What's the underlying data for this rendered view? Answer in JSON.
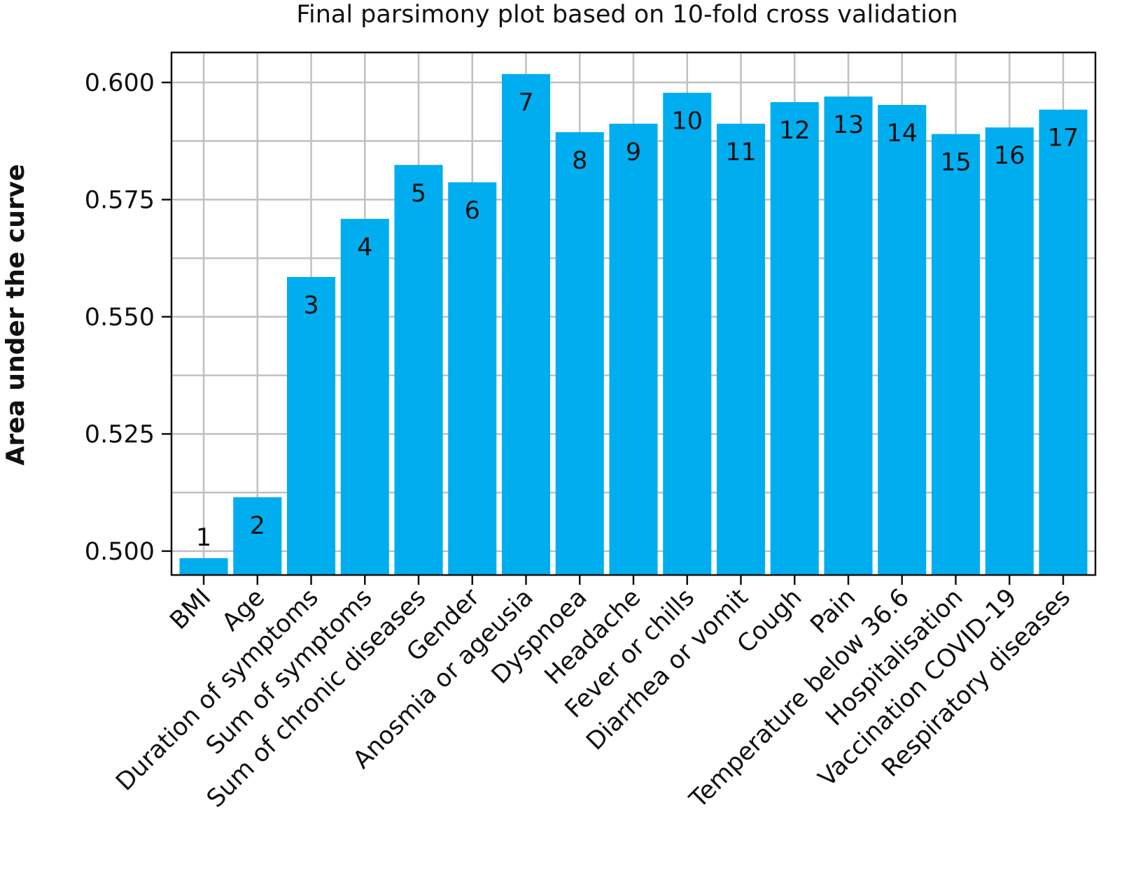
{
  "chart_data": {
    "type": "bar",
    "title": "Final parsimony plot based on 10-fold cross validation",
    "xlabel": "",
    "ylabel": "Area under the curve",
    "categories": [
      "BMI",
      "Age",
      "Duration of symptoms",
      "Sum of symptoms",
      "Sum of chronic diseases",
      "Gender",
      "Anosmia or ageusia",
      "Dyspnoea",
      "Headache",
      "Fever or chills",
      "Diarrhea or vomit",
      "Cough",
      "Pain",
      "Temperature below 36.6",
      "Hospitalisation",
      "Vaccination COVID-19",
      "Respiratory diseases"
    ],
    "bar_labels": [
      "1",
      "2",
      "3",
      "4",
      "5",
      "6",
      "7",
      "8",
      "9",
      "10",
      "11",
      "12",
      "13",
      "14",
      "15",
      "16",
      "17"
    ],
    "values": [
      0.4985,
      0.5115,
      0.5585,
      0.5709,
      0.5824,
      0.5787,
      0.6018,
      0.5894,
      0.5912,
      0.5978,
      0.5912,
      0.5958,
      0.597,
      0.5952,
      0.589,
      0.5904,
      0.5942
    ],
    "ylim": [
      0.4949,
      0.6064
    ],
    "yticks": [
      "0.500",
      "0.525",
      "0.550",
      "0.575",
      "0.600"
    ],
    "grid": true,
    "bar_color": "#00AEEF",
    "grid_color": "#C0C0C0"
  }
}
